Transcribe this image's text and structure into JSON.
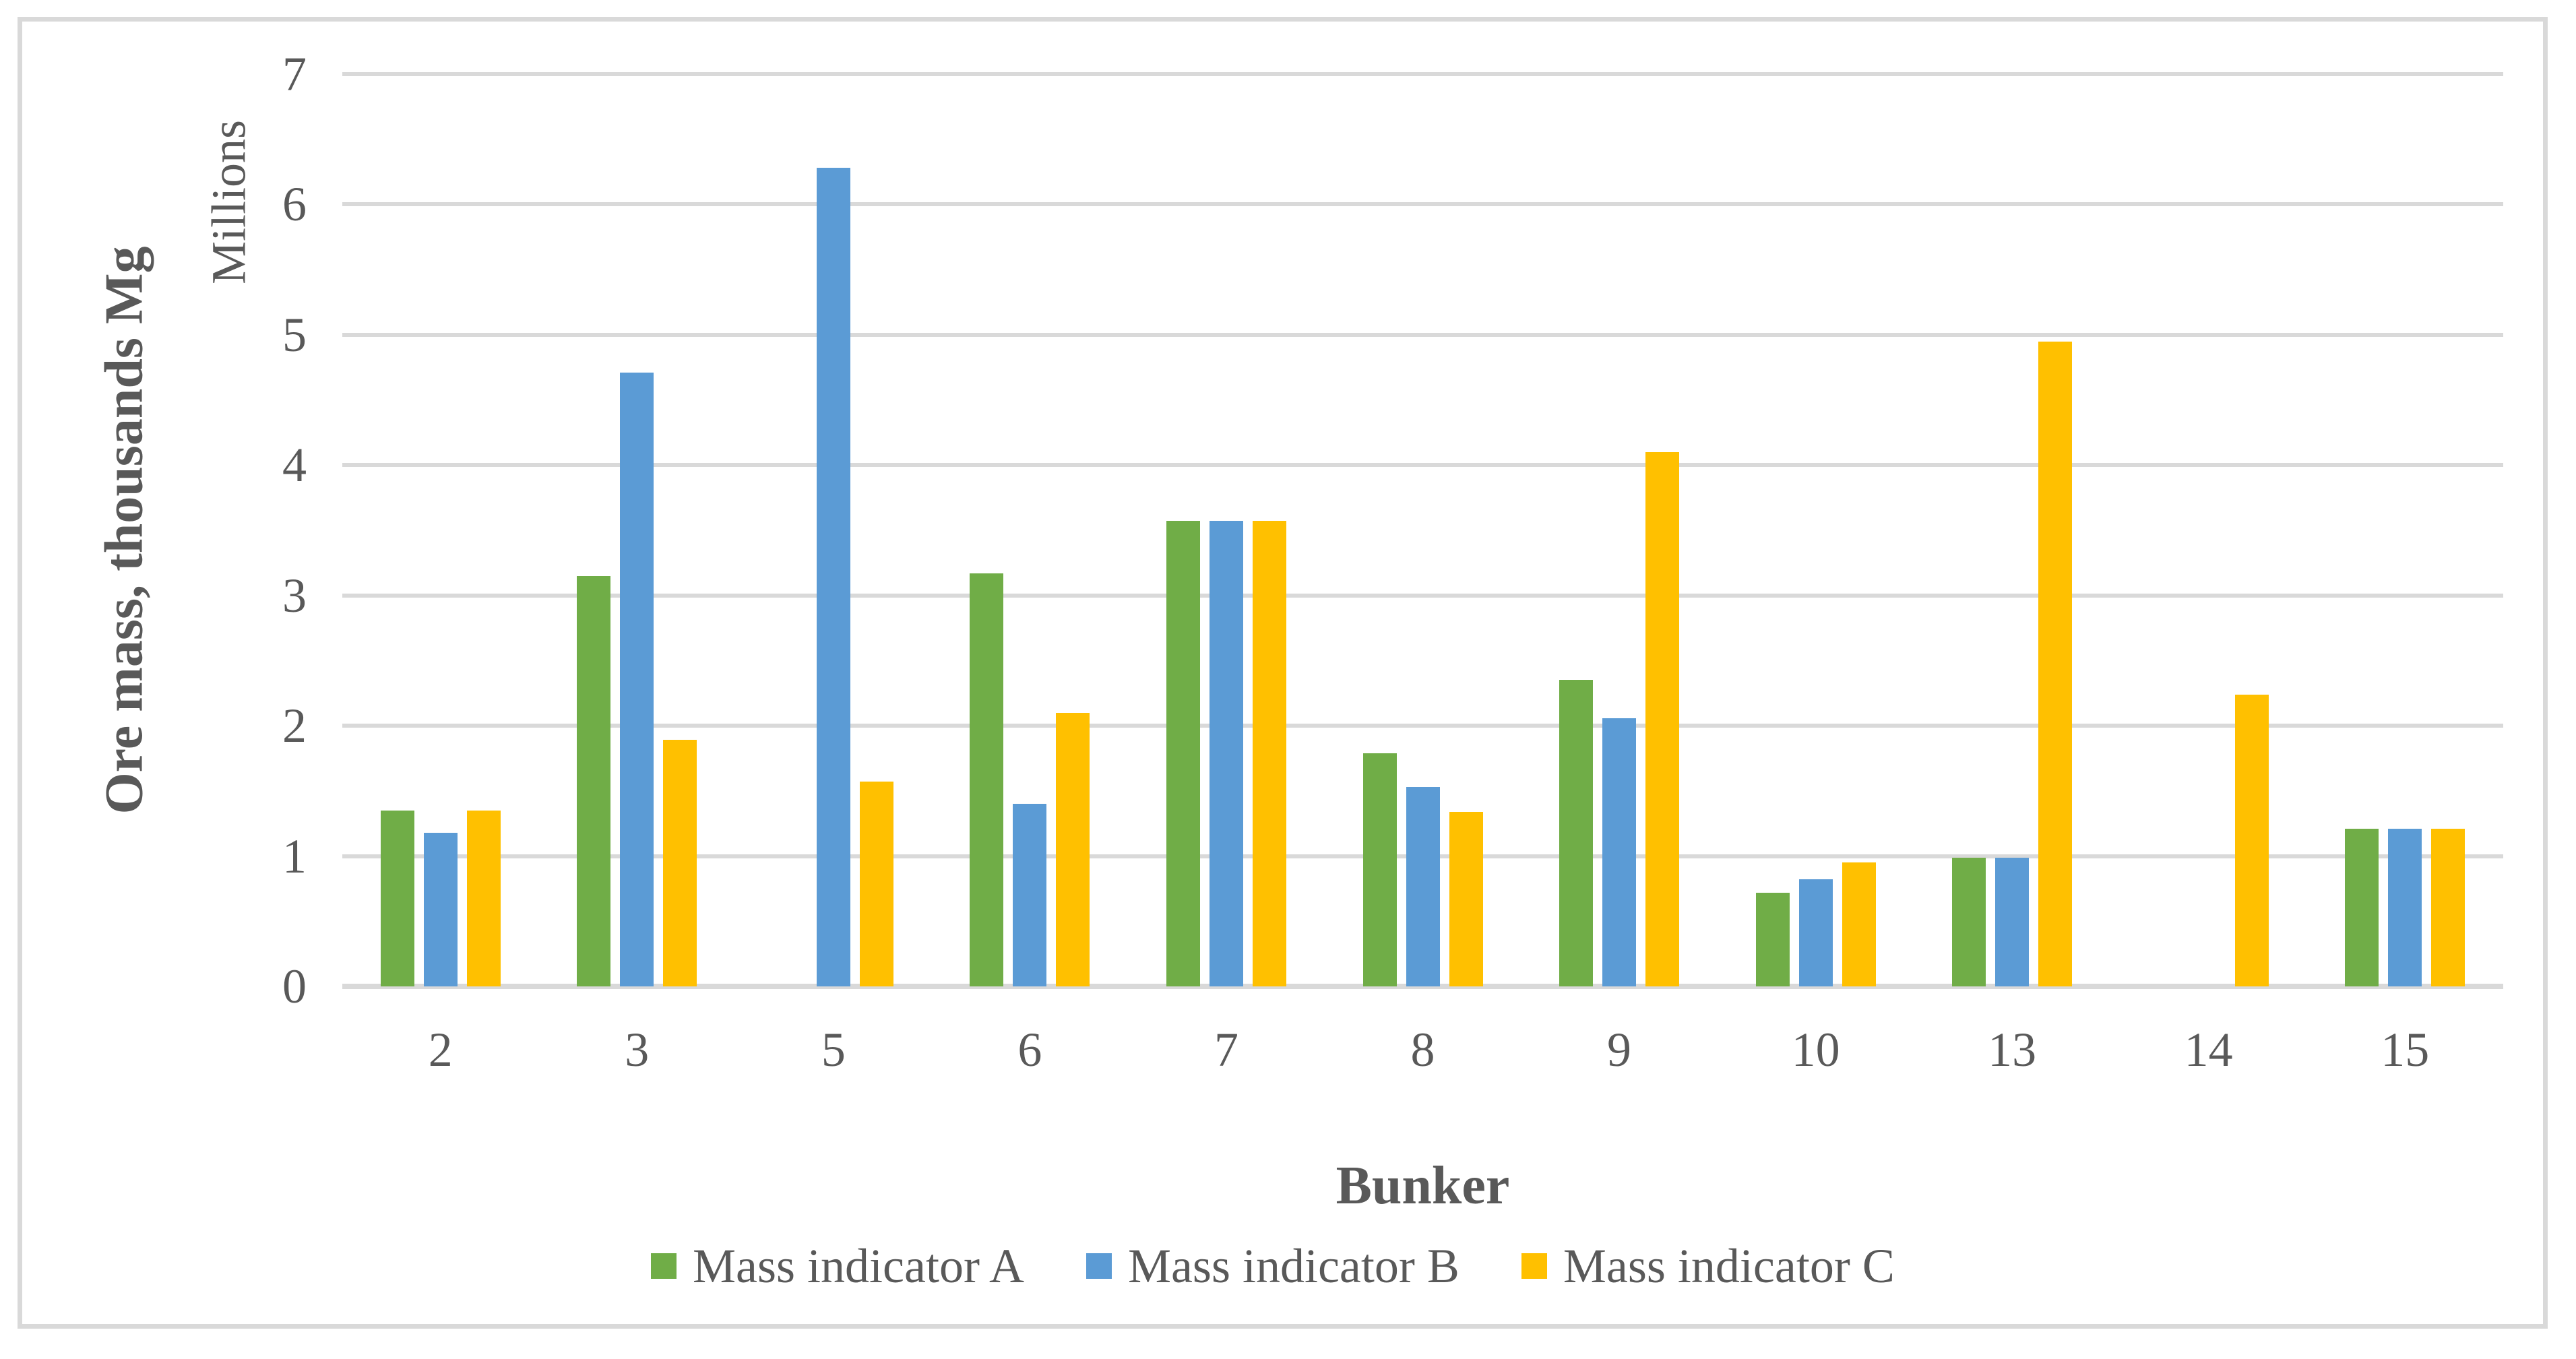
{
  "chart_data": {
    "type": "bar",
    "title": "",
    "xlabel": "Bunker",
    "ylabel": "Ore mass, thousands Mg",
    "y_unit_label": "Millions",
    "ylim": [
      0,
      7
    ],
    "ytick_step": 1,
    "yticks": [
      "0",
      "1",
      "2",
      "3",
      "4",
      "5",
      "6",
      "7"
    ],
    "grid": true,
    "legend_position": "bottom",
    "categories": [
      "2",
      "3",
      "5",
      "6",
      "7",
      "8",
      "9",
      "10",
      "13",
      "14",
      "15"
    ],
    "series": [
      {
        "name": "Mass indicator A",
        "color": "#70AD47",
        "values": [
          1.35,
          3.15,
          0,
          3.17,
          3.57,
          1.79,
          2.35,
          0.72,
          0.99,
          0,
          1.21
        ]
      },
      {
        "name": "Mass indicator B",
        "color": "#5B9BD5",
        "values": [
          1.18,
          4.71,
          6.28,
          1.4,
          3.57,
          1.53,
          2.06,
          0.82,
          0.99,
          0,
          1.21
        ]
      },
      {
        "name": "Mass indicator C",
        "color": "#FFC000",
        "values": [
          1.35,
          1.89,
          1.57,
          2.1,
          3.57,
          1.34,
          4.1,
          0.95,
          4.95,
          2.24,
          1.21
        ]
      }
    ]
  },
  "colors": {
    "background": "#FFFFFF",
    "gridline": "#D9D9D9",
    "axis_line": "#D9D9D9",
    "frame_border": "#D9D9D9",
    "text": "#595959"
  }
}
